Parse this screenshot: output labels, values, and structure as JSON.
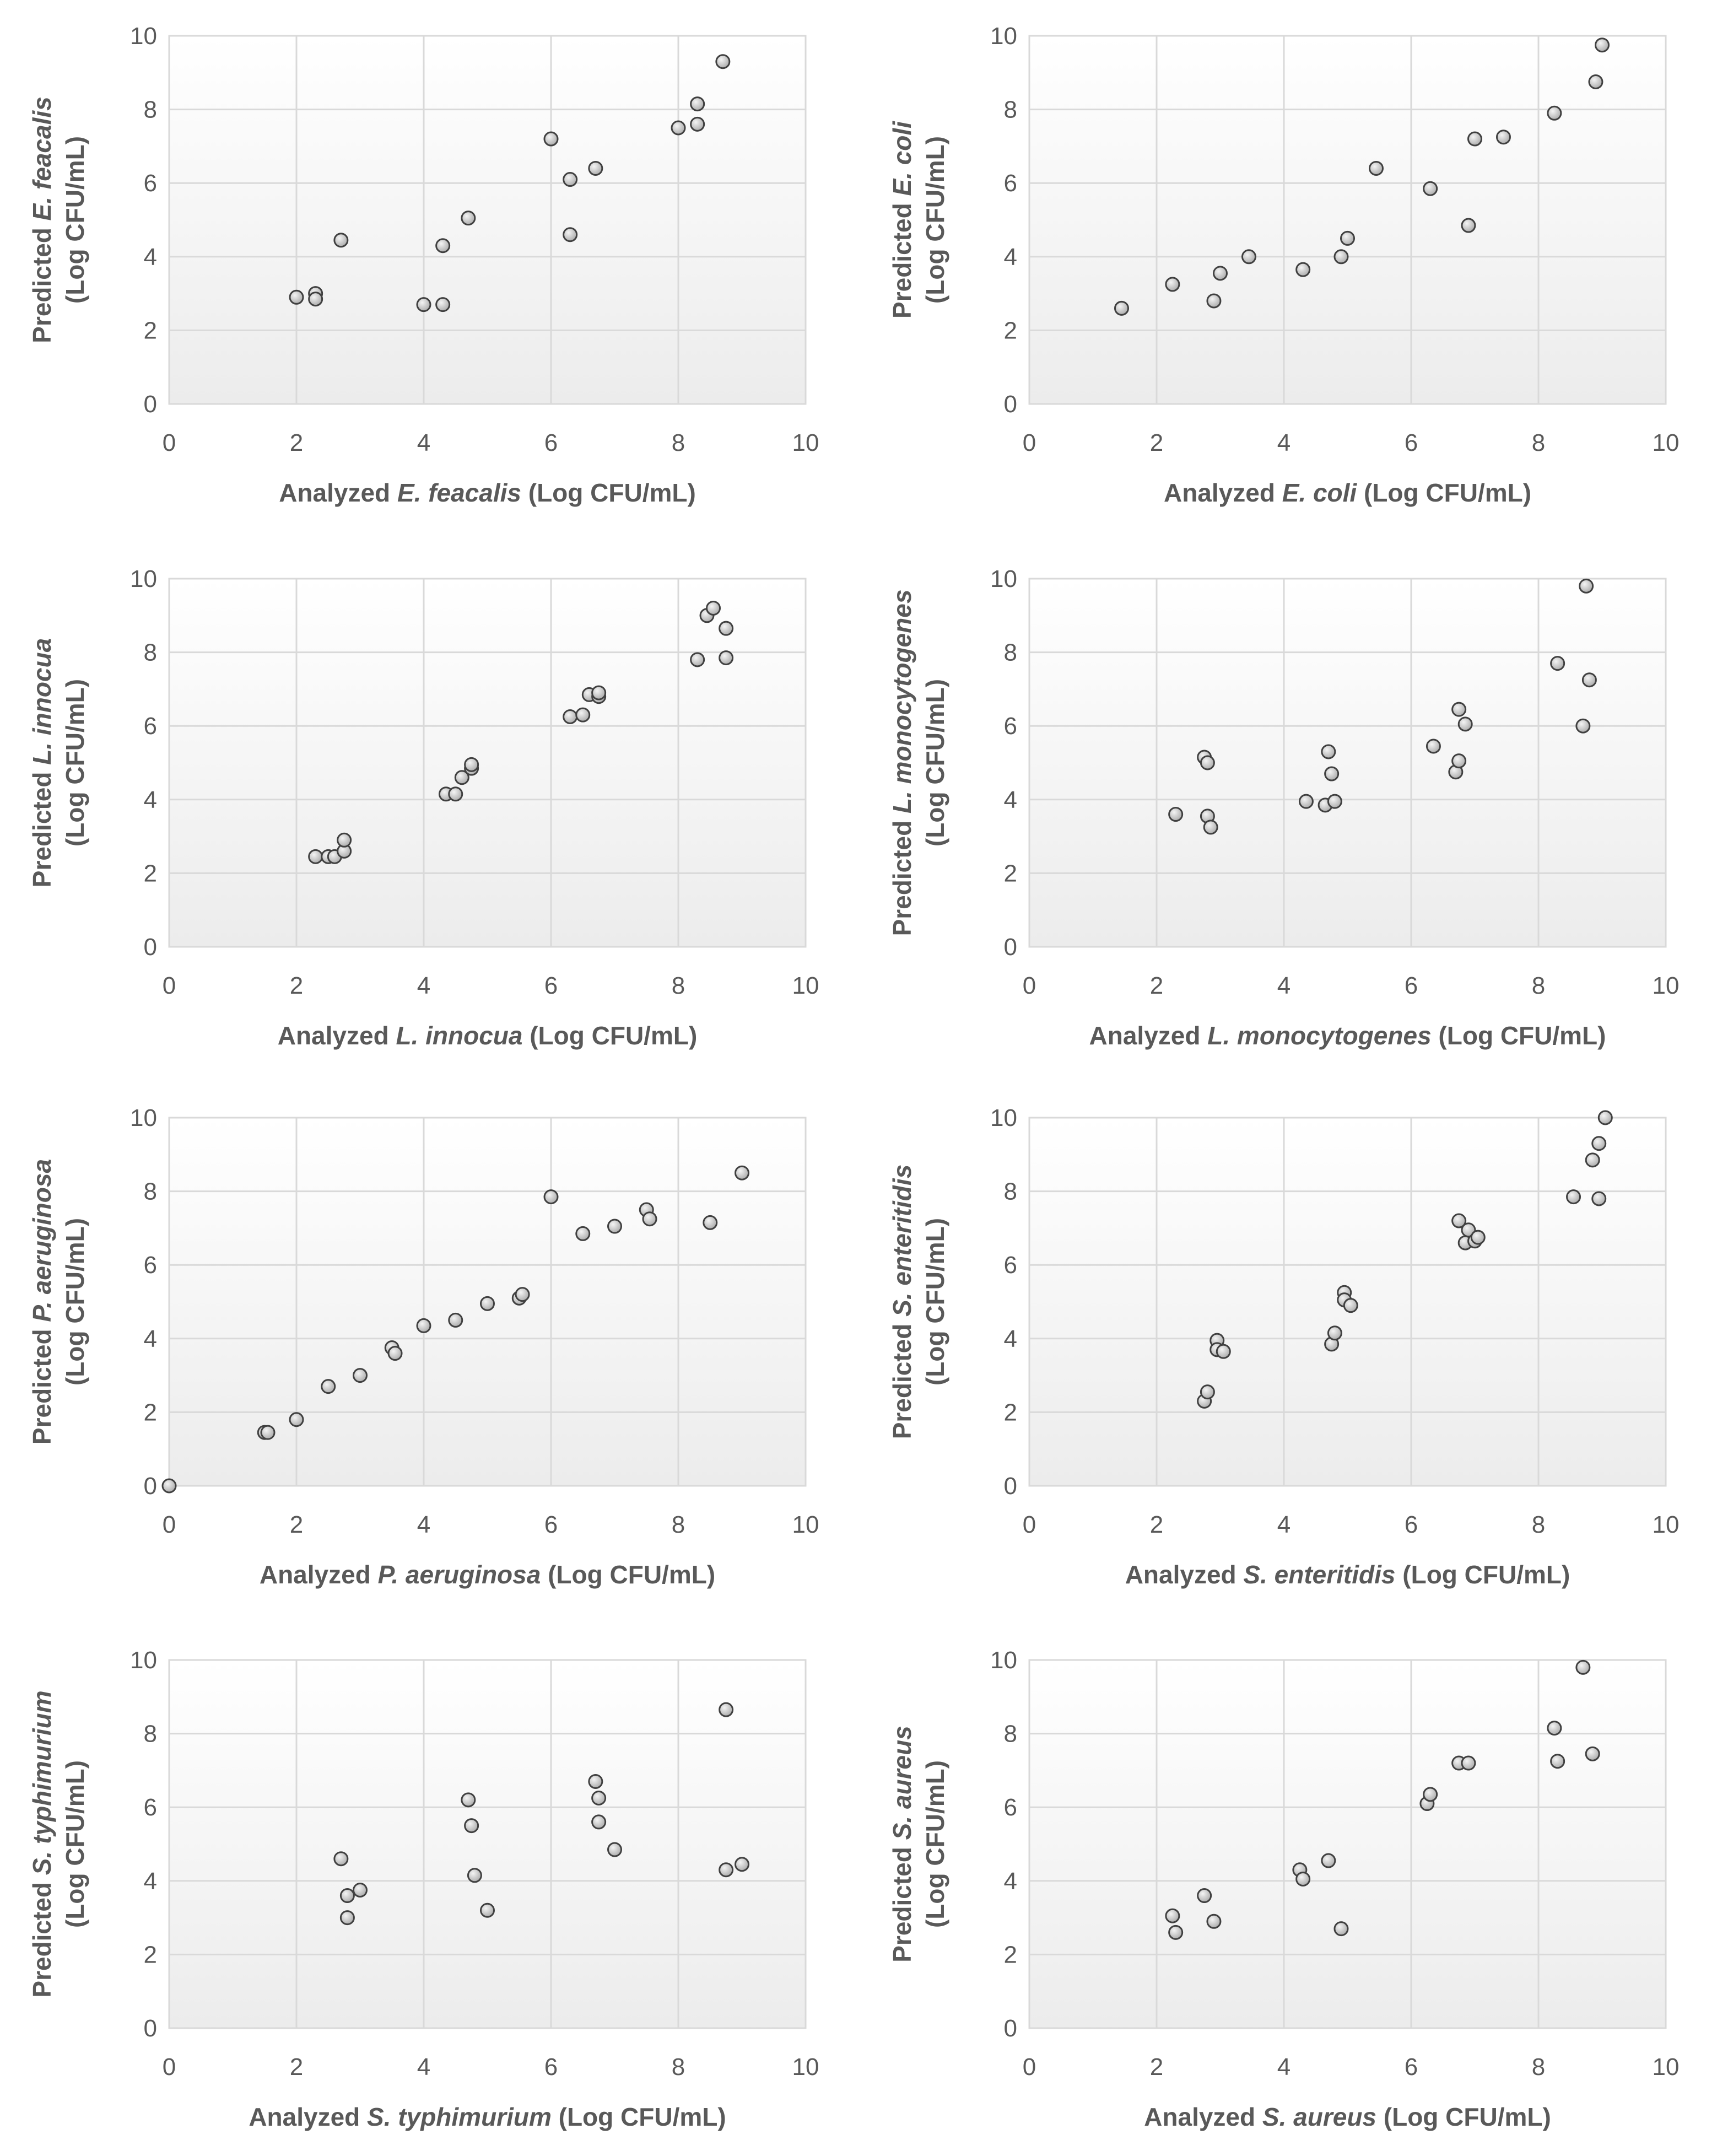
{
  "colors": {
    "grid": "#d9d9d9",
    "text": "#595959",
    "point_fill": "#d0d0d0",
    "point_edge": "#404040",
    "plot_bg_top": "#ffffff",
    "plot_bg_bottom": "#ececec"
  },
  "chart_data": [
    {
      "type": "scatter",
      "id": "e-feacalis",
      "xlabel": {
        "pre": "Analyzed ",
        "organism": "E. feacalis",
        "post": " (Log CFU/mL)"
      },
      "ylabel": {
        "pre": "Predicted ",
        "organism": "E. feacalis",
        "units": "(Log CFU/mL)"
      },
      "xlim": [
        0,
        10
      ],
      "ylim": [
        0,
        10
      ],
      "xticks": [
        "0",
        "2",
        "4",
        "6",
        "8",
        "10"
      ],
      "yticks": [
        "0",
        "2",
        "4",
        "6",
        "8",
        "10"
      ],
      "points": [
        [
          2.0,
          2.9
        ],
        [
          2.3,
          3.0
        ],
        [
          2.3,
          2.85
        ],
        [
          2.7,
          4.45
        ],
        [
          4.0,
          2.7
        ],
        [
          4.3,
          4.3
        ],
        [
          4.3,
          2.7
        ],
        [
          4.7,
          5.05
        ],
        [
          6.0,
          7.2
        ],
        [
          6.3,
          6.1
        ],
        [
          6.3,
          4.6
        ],
        [
          6.7,
          6.4
        ],
        [
          8.0,
          7.5
        ],
        [
          8.3,
          8.15
        ],
        [
          8.3,
          7.6
        ],
        [
          8.7,
          9.3
        ]
      ]
    },
    {
      "type": "scatter",
      "id": "e-coli",
      "xlabel": {
        "pre": "Analyzed ",
        "organism": "E. coli",
        "post": " (Log CFU/mL)"
      },
      "ylabel": {
        "pre": "Predicted ",
        "organism": "E. coli",
        "units": "(Log CFU/mL)"
      },
      "xlim": [
        0,
        10
      ],
      "ylim": [
        0,
        10
      ],
      "xticks": [
        "0",
        "2",
        "4",
        "6",
        "8",
        "10"
      ],
      "yticks": [
        "0",
        "2",
        "4",
        "6",
        "8",
        "10"
      ],
      "points": [
        [
          1.45,
          2.6
        ],
        [
          2.25,
          3.25
        ],
        [
          2.9,
          2.8
        ],
        [
          3.0,
          3.55
        ],
        [
          3.45,
          4.0
        ],
        [
          4.3,
          3.65
        ],
        [
          4.9,
          4.0
        ],
        [
          5.0,
          4.5
        ],
        [
          5.45,
          6.4
        ],
        [
          6.3,
          5.85
        ],
        [
          6.9,
          4.85
        ],
        [
          7.0,
          7.2
        ],
        [
          7.45,
          7.25
        ],
        [
          8.25,
          7.9
        ],
        [
          8.9,
          8.75
        ],
        [
          9.0,
          9.75
        ]
      ]
    },
    {
      "type": "scatter",
      "id": "l-innocua",
      "xlabel": {
        "pre": "Analyzed ",
        "organism": "L. innocua",
        "post": " (Log CFU/mL)"
      },
      "ylabel": {
        "pre": "Predicted ",
        "organism": "L. innocua",
        "units": "(Log CFU/mL)"
      },
      "xlim": [
        0,
        10
      ],
      "ylim": [
        0,
        10
      ],
      "xticks": [
        "0",
        "2",
        "4",
        "6",
        "8",
        "10"
      ],
      "yticks": [
        "0",
        "2",
        "4",
        "6",
        "8",
        "10"
      ],
      "points": [
        [
          2.3,
          2.45
        ],
        [
          2.5,
          2.45
        ],
        [
          2.6,
          2.45
        ],
        [
          2.75,
          2.6
        ],
        [
          2.75,
          2.9
        ],
        [
          4.35,
          4.15
        ],
        [
          4.5,
          4.15
        ],
        [
          4.6,
          4.6
        ],
        [
          4.75,
          4.85
        ],
        [
          4.75,
          4.95
        ],
        [
          6.3,
          6.25
        ],
        [
          6.5,
          6.3
        ],
        [
          6.6,
          6.85
        ],
        [
          6.75,
          6.8
        ],
        [
          6.75,
          6.9
        ],
        [
          8.3,
          7.8
        ],
        [
          8.45,
          9.0
        ],
        [
          8.55,
          9.2
        ],
        [
          8.75,
          8.65
        ],
        [
          8.75,
          7.85
        ]
      ]
    },
    {
      "type": "scatter",
      "id": "l-monocytogenes",
      "xlabel": {
        "pre": "Analyzed ",
        "organism": "L. monocytogenes",
        "post": " (Log CFU/mL)"
      },
      "ylabel": {
        "pre": "Predicted ",
        "organism": "L. monocytogenes",
        "units": "(Log CFU/mL)"
      },
      "xlim": [
        0,
        10
      ],
      "ylim": [
        0,
        10
      ],
      "xticks": [
        "0",
        "2",
        "4",
        "6",
        "8",
        "10"
      ],
      "yticks": [
        "0",
        "2",
        "4",
        "6",
        "8",
        "10"
      ],
      "points": [
        [
          2.3,
          3.6
        ],
        [
          2.75,
          5.15
        ],
        [
          2.8,
          5.0
        ],
        [
          2.8,
          3.55
        ],
        [
          2.85,
          3.25
        ],
        [
          4.35,
          3.95
        ],
        [
          4.65,
          3.85
        ],
        [
          4.7,
          5.3
        ],
        [
          4.75,
          4.7
        ],
        [
          4.8,
          3.95
        ],
        [
          6.35,
          5.45
        ],
        [
          6.7,
          4.75
        ],
        [
          6.75,
          6.45
        ],
        [
          6.75,
          5.05
        ],
        [
          6.85,
          6.05
        ],
        [
          8.3,
          7.7
        ],
        [
          8.7,
          6.0
        ],
        [
          8.75,
          9.8
        ],
        [
          8.8,
          7.25
        ]
      ]
    },
    {
      "type": "scatter",
      "id": "p-aeruginosa",
      "xlabel": {
        "pre": "Analyzed ",
        "organism": "P. aeruginosa",
        "post": " (Log CFU/mL)"
      },
      "ylabel": {
        "pre": "Predicted ",
        "organism": "P. aeruginosa",
        "units": "(Log CFU/mL)"
      },
      "xlim": [
        0,
        10
      ],
      "ylim": [
        0,
        10
      ],
      "xticks": [
        "0",
        "2",
        "4",
        "6",
        "8",
        "10"
      ],
      "yticks": [
        "0",
        "2",
        "4",
        "6",
        "8",
        "10"
      ],
      "points": [
        [
          0.0,
          0.0
        ],
        [
          1.5,
          1.45
        ],
        [
          1.55,
          1.45
        ],
        [
          2.0,
          1.8
        ],
        [
          2.5,
          2.7
        ],
        [
          3.0,
          3.0
        ],
        [
          3.5,
          3.75
        ],
        [
          3.55,
          3.6
        ],
        [
          4.0,
          4.35
        ],
        [
          4.5,
          4.5
        ],
        [
          5.0,
          4.95
        ],
        [
          5.5,
          5.1
        ],
        [
          5.55,
          5.2
        ],
        [
          6.0,
          7.85
        ],
        [
          6.5,
          6.85
        ],
        [
          7.0,
          7.05
        ],
        [
          7.5,
          7.5
        ],
        [
          7.55,
          7.25
        ],
        [
          8.5,
          7.15
        ],
        [
          9.0,
          8.5
        ]
      ]
    },
    {
      "type": "scatter",
      "id": "s-enteritidis",
      "xlabel": {
        "pre": "Analyzed ",
        "organism": "S. enteritidis",
        "post": " (Log CFU/mL)"
      },
      "ylabel": {
        "pre": "Predicted ",
        "organism": "S. enteritidis",
        "units": "(Log CFU/mL)"
      },
      "xlim": [
        0,
        10
      ],
      "ylim": [
        0,
        10
      ],
      "xticks": [
        "0",
        "2",
        "4",
        "6",
        "8",
        "10"
      ],
      "yticks": [
        "0",
        "2",
        "4",
        "6",
        "8",
        "10"
      ],
      "points": [
        [
          2.75,
          2.3
        ],
        [
          2.8,
          2.55
        ],
        [
          2.95,
          3.95
        ],
        [
          2.95,
          3.7
        ],
        [
          3.05,
          3.65
        ],
        [
          4.75,
          3.85
        ],
        [
          4.8,
          4.15
        ],
        [
          4.95,
          5.25
        ],
        [
          4.95,
          5.05
        ],
        [
          5.05,
          4.9
        ],
        [
          6.75,
          7.2
        ],
        [
          6.85,
          6.6
        ],
        [
          6.9,
          6.95
        ],
        [
          7.0,
          6.65
        ],
        [
          7.05,
          6.75
        ],
        [
          8.55,
          7.85
        ],
        [
          8.85,
          8.85
        ],
        [
          8.95,
          9.3
        ],
        [
          8.95,
          7.8
        ],
        [
          9.05,
          10.0
        ]
      ]
    },
    {
      "type": "scatter",
      "id": "s-typhimurium",
      "xlabel": {
        "pre": "Analyzed ",
        "organism": "S. typhimurium",
        "post": " (Log CFU/mL)"
      },
      "ylabel": {
        "pre": "Predicted ",
        "organism": "S. typhimurium",
        "units": "(Log CFU/mL)"
      },
      "xlim": [
        0,
        10
      ],
      "ylim": [
        0,
        10
      ],
      "xticks": [
        "0",
        "2",
        "4",
        "6",
        "8",
        "10"
      ],
      "yticks": [
        "0",
        "2",
        "4",
        "6",
        "8",
        "10"
      ],
      "points": [
        [
          2.7,
          4.6
        ],
        [
          2.8,
          3.6
        ],
        [
          2.8,
          3.0
        ],
        [
          3.0,
          3.75
        ],
        [
          4.7,
          6.2
        ],
        [
          4.75,
          5.5
        ],
        [
          4.8,
          4.15
        ],
        [
          5.0,
          3.2
        ],
        [
          6.7,
          6.7
        ],
        [
          6.75,
          6.25
        ],
        [
          6.75,
          5.6
        ],
        [
          7.0,
          4.85
        ],
        [
          8.75,
          8.65
        ],
        [
          8.75,
          4.3
        ],
        [
          9.0,
          4.45
        ]
      ]
    },
    {
      "type": "scatter",
      "id": "s-aureus",
      "xlabel": {
        "pre": "Analyzed ",
        "organism": "S. aureus",
        "post": " (Log CFU/mL)"
      },
      "ylabel": {
        "pre": "Predicted ",
        "organism": "S. aureus",
        "units": "(Log CFU/mL)"
      },
      "xlim": [
        0,
        10
      ],
      "ylim": [
        0,
        10
      ],
      "xticks": [
        "0",
        "2",
        "4",
        "6",
        "8",
        "10"
      ],
      "yticks": [
        "0",
        "2",
        "4",
        "6",
        "8",
        "10"
      ],
      "points": [
        [
          2.25,
          3.05
        ],
        [
          2.3,
          2.6
        ],
        [
          2.75,
          3.6
        ],
        [
          2.9,
          2.9
        ],
        [
          4.25,
          4.3
        ],
        [
          4.3,
          4.05
        ],
        [
          4.7,
          4.55
        ],
        [
          4.9,
          2.7
        ],
        [
          6.25,
          6.1
        ],
        [
          6.3,
          6.35
        ],
        [
          6.75,
          7.2
        ],
        [
          6.9,
          7.2
        ],
        [
          8.25,
          8.15
        ],
        [
          8.3,
          7.25
        ],
        [
          8.7,
          9.8
        ],
        [
          8.85,
          7.45
        ]
      ]
    }
  ]
}
